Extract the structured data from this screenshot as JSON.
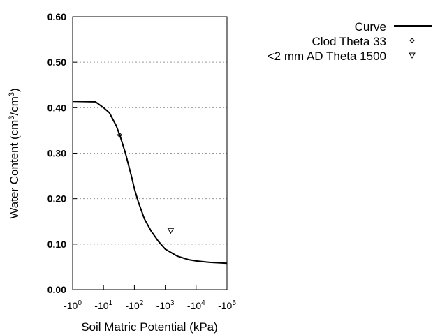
{
  "chart_data": {
    "type": "line",
    "title": "",
    "xlabel": "Soil Matric Potential (kPa)",
    "ylabel_main": "Water Content (cm",
    "ylabel_sup1": "3",
    "ylabel_mid": "/cm",
    "ylabel_sup2": "3",
    "ylabel_end": ")",
    "x_scale": "log (negative)",
    "xlim": [
      -1,
      -100000
    ],
    "ylim": [
      0,
      0.6
    ],
    "x_ticks": [
      {
        "base": "-10",
        "exp": "0"
      },
      {
        "base": "-10",
        "exp": "1"
      },
      {
        "base": "-10",
        "exp": "2"
      },
      {
        "base": "-10",
        "exp": "3"
      },
      {
        "base": "-10",
        "exp": "4"
      },
      {
        "base": "-10",
        "exp": "5"
      }
    ],
    "y_ticks": [
      "0.00",
      "0.10",
      "0.20",
      "0.30",
      "0.40",
      "0.50",
      "0.60"
    ],
    "grid": "horizontal dotted",
    "legend_position": "top-right",
    "series": [
      {
        "name": "Curve",
        "style": "line",
        "color": "#000000",
        "x": [
          -1,
          -5.5,
          -10,
          -15.5,
          -26,
          -34,
          -52,
          -81,
          -100,
          -135,
          -209,
          -355,
          -589,
          -1000,
          -2400,
          -5600,
          -10000,
          -27000,
          -100000
        ],
        "y": [
          0.414,
          0.413,
          0.4,
          0.389,
          0.36,
          0.339,
          0.299,
          0.248,
          0.222,
          0.192,
          0.156,
          0.128,
          0.107,
          0.089,
          0.074,
          0.066,
          0.063,
          0.06,
          0.058
        ]
      },
      {
        "name": "Clod Theta 33",
        "style": "diamond",
        "color": "#000000",
        "x": [
          -33
        ],
        "y": [
          0.34
        ]
      },
      {
        "name": "<2 mm AD Theta 1500",
        "style": "triangle-down",
        "color": "#000000",
        "x": [
          -1500
        ],
        "y": [
          0.13
        ]
      }
    ]
  }
}
